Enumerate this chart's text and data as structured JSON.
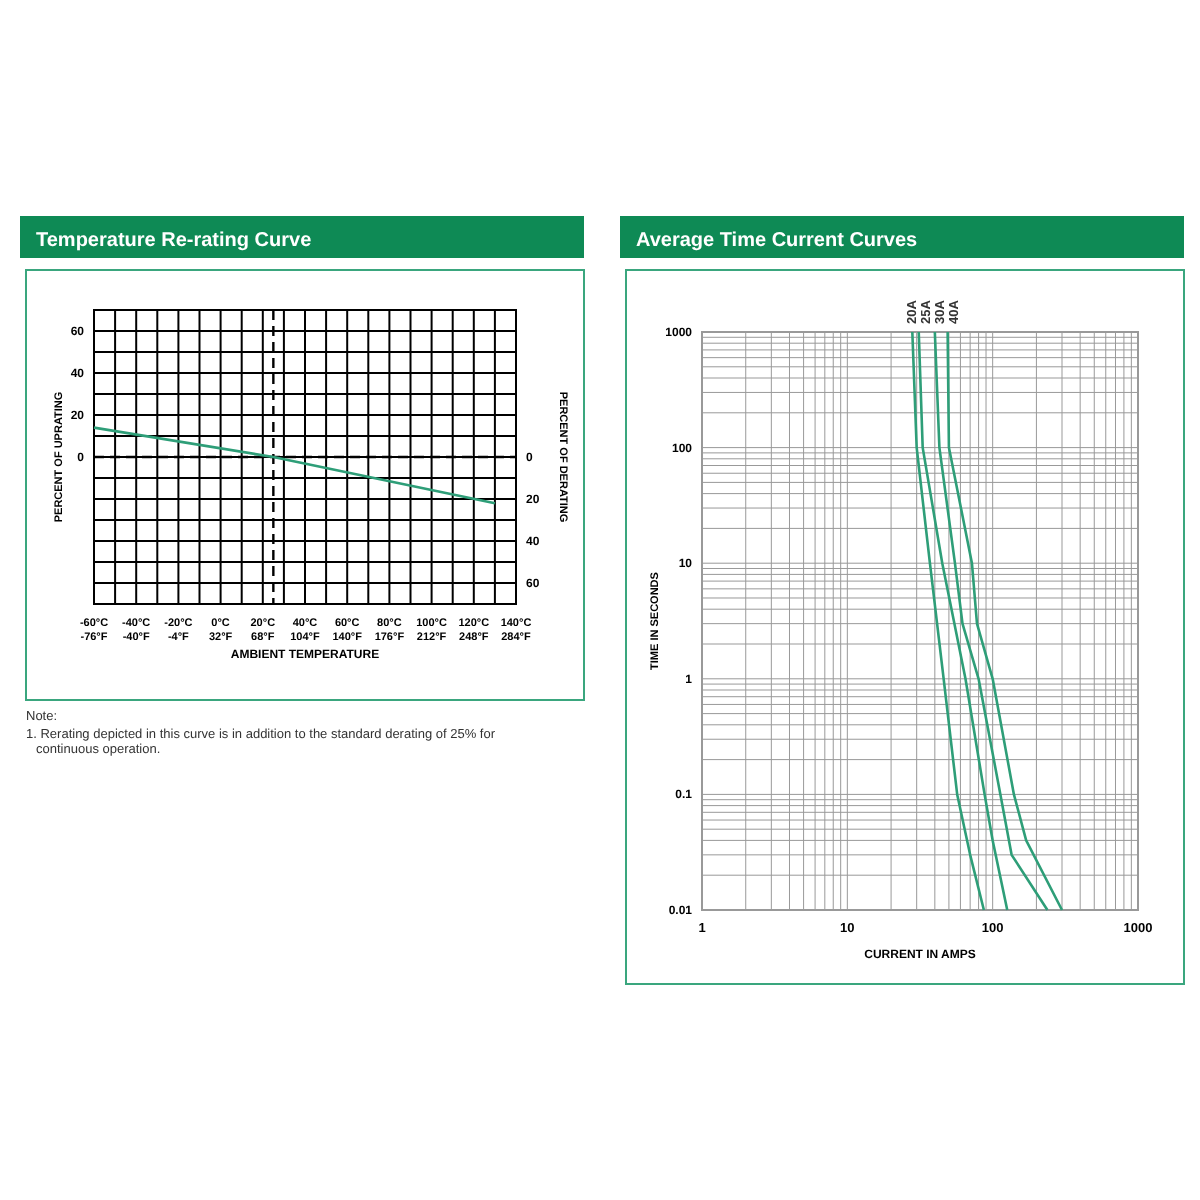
{
  "chart_data": [
    {
      "type": "line",
      "title": "Temperature Re-rating Curve",
      "xlabel": "AMBIENT TEMPERATURE",
      "ylabel": "PERCENT OF UPRATING",
      "y2label": "PERCENT OF DERATING",
      "series": [
        {
          "color": "#2e9e78",
          "x": [
            -60,
            25,
            130
          ],
          "values": [
            14,
            0,
            -22
          ]
        }
      ],
      "xlim": [
        -60,
        140
      ],
      "xticks": [
        {
          "value": -60,
          "label": "-60°C"
        },
        {
          "value": -40,
          "label": "-40°C"
        },
        {
          "value": -20,
          "label": "-20°C"
        },
        {
          "value": 0,
          "label": "0°C"
        },
        {
          "value": 20,
          "label": "20°C"
        },
        {
          "value": 40,
          "label": "40°C"
        },
        {
          "value": 60,
          "label": "60°C"
        },
        {
          "value": 80,
          "label": "80°C"
        },
        {
          "value": 100,
          "label": "100°C"
        },
        {
          "value": 120,
          "label": "120°C"
        },
        {
          "value": 140,
          "label": "140°C"
        }
      ],
      "x2lim": [
        -76,
        284
      ],
      "x2ticks": [
        {
          "value": -76,
          "label": "-76°F"
        },
        {
          "value": -40,
          "label": "-40°F"
        },
        {
          "value": -4,
          "label": "-4°F"
        },
        {
          "value": 32,
          "label": "32°F"
        },
        {
          "value": 68,
          "label": "68°F"
        },
        {
          "value": 104,
          "label": "104°F"
        },
        {
          "value": 140,
          "label": "140°F"
        },
        {
          "value": 176,
          "label": "176°F"
        },
        {
          "value": 212,
          "label": "212°F"
        },
        {
          "value": 248,
          "label": "248°F"
        },
        {
          "value": 284,
          "label": "284°F"
        }
      ],
      "ylim": [
        -70,
        70
      ],
      "yticks": [
        0,
        20,
        40,
        60
      ],
      "y2lim": [
        -70,
        70
      ],
      "y2ticks": [
        {
          "value": 0,
          "label": "0"
        },
        {
          "value": -20,
          "label": "20"
        },
        {
          "value": -40,
          "label": "40"
        },
        {
          "value": -60,
          "label": "60"
        }
      ],
      "ref_lines": [
        {
          "axis": "y",
          "value": 0,
          "color": "#000000",
          "line_style": "dashed"
        },
        {
          "axis": "x",
          "value": 25,
          "color": "#000000",
          "line_style": "dashed"
        }
      ],
      "grid": true,
      "legend": false,
      "marker": "none",
      "line_style": "solid",
      "annotations": [
        "Note:",
        "1. Rerating depicted in this curve is in addition to the standard derating of 25% for continuous operation."
      ]
    },
    {
      "type": "line",
      "title": "Average Time Current Curves",
      "xlabel": "CURRENT IN AMPS",
      "ylabel": "TIME IN SECONDS",
      "log": "xy",
      "series": [
        {
          "name": "20A",
          "color": "#2e9e78",
          "x": [
            28,
            30,
            37,
            46,
            57,
            70,
            87
          ],
          "values": [
            1000,
            100,
            10,
            1,
            0.1,
            0.03,
            0.01
          ]
        },
        {
          "name": "25A",
          "color": "#2e9e78",
          "x": [
            31,
            33,
            45,
            65,
            88,
            100,
            126
          ],
          "values": [
            1000,
            100,
            10,
            1,
            0.1,
            0.04,
            0.01
          ]
        },
        {
          "name": "30A",
          "color": "#2e9e78",
          "x": [
            40,
            43,
            55,
            62,
            80,
            113,
            135,
            238
          ],
          "values": [
            1000,
            100,
            10,
            3,
            1,
            0.1,
            0.03,
            0.01
          ]
        },
        {
          "name": "40A",
          "color": "#2e9e78",
          "x": [
            49,
            50,
            72,
            78,
            100,
            140,
            170,
            300
          ],
          "values": [
            1000,
            100,
            10,
            3,
            1,
            0.1,
            0.04,
            0.01
          ]
        }
      ],
      "xlim": [
        1,
        1000
      ],
      "xticks": [
        1,
        10,
        100,
        1000
      ],
      "ylim": [
        0.01,
        1000
      ],
      "yticks": [
        0.01,
        0.1,
        1,
        10,
        100,
        1000
      ],
      "grid": true,
      "legend": false,
      "marker": "none",
      "line_style": "solid"
    }
  ]
}
